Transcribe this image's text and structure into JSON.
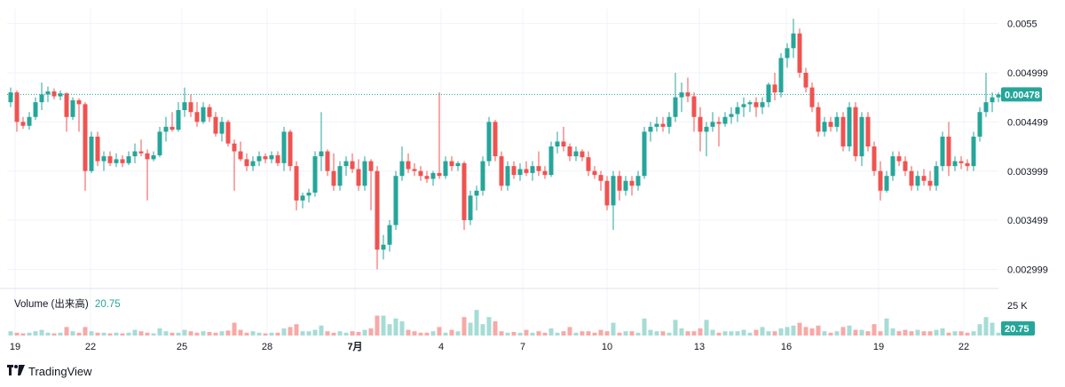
{
  "chart_data": {
    "type": "candlestick",
    "x_ticks": [
      "19",
      "22",
      "25",
      "28",
      "7月",
      "4",
      "7",
      "10",
      "13",
      "16",
      "19",
      "22"
    ],
    "y_ticks": [
      "0.0055",
      "0.004999",
      "0.004499",
      "0.003999",
      "0.003499",
      "0.002999"
    ],
    "ylim": [
      0.00285,
      0.00565
    ],
    "volume_ylim": [
      0,
      30000
    ],
    "current_price": "0.00478",
    "volume": {
      "label": "Volume (出来高)",
      "value": "20.75",
      "axis_tick": "25 K",
      "badge": "20.75"
    },
    "colors": {
      "up": "#26a69a",
      "down": "#ef5350",
      "up_vol": "#a6dcd6",
      "down_vol": "#f7a9a7",
      "grid": "#f0f3fa"
    },
    "candles": [
      [
        0.0047,
        0.00485,
        0.00465,
        0.0048
      ],
      [
        0.0048,
        0.00482,
        0.0044,
        0.0045
      ],
      [
        0.0045,
        0.00455,
        0.00443,
        0.00446
      ],
      [
        0.00446,
        0.0046,
        0.00442,
        0.00455
      ],
      [
        0.00455,
        0.00475,
        0.00452,
        0.0047
      ],
      [
        0.0047,
        0.0049,
        0.00462,
        0.00478
      ],
      [
        0.00478,
        0.00486,
        0.0047,
        0.00481
      ],
      [
        0.00481,
        0.00484,
        0.00473,
        0.00476
      ],
      [
        0.00476,
        0.00482,
        0.00472,
        0.00479
      ],
      [
        0.00479,
        0.0048,
        0.0044,
        0.00455
      ],
      [
        0.00455,
        0.00475,
        0.00452,
        0.00472
      ],
      [
        0.00472,
        0.00474,
        0.0044,
        0.00468
      ],
      [
        0.00468,
        0.0047,
        0.0038,
        0.004
      ],
      [
        0.004,
        0.0044,
        0.00398,
        0.00435
      ],
      [
        0.00435,
        0.0044,
        0.00405,
        0.0041
      ],
      [
        0.0041,
        0.0042,
        0.004,
        0.00415
      ],
      [
        0.00415,
        0.0042,
        0.00405,
        0.00408
      ],
      [
        0.00408,
        0.00418,
        0.00404,
        0.00412
      ],
      [
        0.00412,
        0.00416,
        0.00404,
        0.00408
      ],
      [
        0.00408,
        0.0042,
        0.00406,
        0.00415
      ],
      [
        0.00415,
        0.00428,
        0.00408,
        0.0042
      ],
      [
        0.0042,
        0.00432,
        0.00415,
        0.00418
      ],
      [
        0.00418,
        0.00422,
        0.0037,
        0.00412
      ],
      [
        0.00412,
        0.0042,
        0.0041,
        0.00416
      ],
      [
        0.00416,
        0.00445,
        0.00414,
        0.0044
      ],
      [
        0.0044,
        0.00455,
        0.0043,
        0.00445
      ],
      [
        0.00445,
        0.0046,
        0.0044,
        0.00442
      ],
      [
        0.00442,
        0.0047,
        0.0044,
        0.00462
      ],
      [
        0.00462,
        0.00485,
        0.00455,
        0.0047
      ],
      [
        0.0047,
        0.00478,
        0.00455,
        0.0046
      ],
      [
        0.0046,
        0.0047,
        0.00445,
        0.0045
      ],
      [
        0.0045,
        0.0047,
        0.00448,
        0.00465
      ],
      [
        0.00465,
        0.00468,
        0.0045,
        0.00455
      ],
      [
        0.00455,
        0.0046,
        0.00435,
        0.00438
      ],
      [
        0.00438,
        0.00455,
        0.0043,
        0.0045
      ],
      [
        0.0045,
        0.00452,
        0.00425,
        0.00428
      ],
      [
        0.00428,
        0.00432,
        0.0038,
        0.0042
      ],
      [
        0.0042,
        0.0043,
        0.0041,
        0.00412
      ],
      [
        0.00412,
        0.00418,
        0.004,
        0.00405
      ],
      [
        0.00405,
        0.00415,
        0.004,
        0.0041
      ],
      [
        0.0041,
        0.0042,
        0.00405,
        0.00415
      ],
      [
        0.00415,
        0.00418,
        0.00408,
        0.00412
      ],
      [
        0.00412,
        0.0042,
        0.00408,
        0.00416
      ],
      [
        0.00416,
        0.0042,
        0.00405,
        0.00408
      ],
      [
        0.00408,
        0.00445,
        0.004,
        0.0044
      ],
      [
        0.0044,
        0.00442,
        0.004,
        0.00405
      ],
      [
        0.00405,
        0.0041,
        0.0036,
        0.0037
      ],
      [
        0.0037,
        0.00378,
        0.00362,
        0.00375
      ],
      [
        0.00375,
        0.00382,
        0.00368,
        0.00378
      ],
      [
        0.00378,
        0.0042,
        0.00374,
        0.00415
      ],
      [
        0.00415,
        0.0046,
        0.004,
        0.0042
      ],
      [
        0.0042,
        0.00422,
        0.00395,
        0.004
      ],
      [
        0.004,
        0.00418,
        0.0038,
        0.00385
      ],
      [
        0.00385,
        0.0041,
        0.0038,
        0.00405
      ],
      [
        0.00405,
        0.00415,
        0.00395,
        0.0041
      ],
      [
        0.0041,
        0.00418,
        0.00398,
        0.00402
      ],
      [
        0.00402,
        0.00412,
        0.0038,
        0.00385
      ],
      [
        0.00385,
        0.00415,
        0.0038,
        0.0041
      ],
      [
        0.0041,
        0.00412,
        0.0036,
        0.004
      ],
      [
        0.004,
        0.00405,
        0.003,
        0.0032
      ],
      [
        0.0032,
        0.00335,
        0.0031,
        0.00325
      ],
      [
        0.00325,
        0.0035,
        0.00318,
        0.00345
      ],
      [
        0.00345,
        0.004,
        0.0034,
        0.00395
      ],
      [
        0.00395,
        0.00425,
        0.0039,
        0.0041
      ],
      [
        0.0041,
        0.00418,
        0.00398,
        0.00402
      ],
      [
        0.00402,
        0.00408,
        0.00395,
        0.004
      ],
      [
        0.004,
        0.00405,
        0.0039,
        0.00395
      ],
      [
        0.00395,
        0.004,
        0.00388,
        0.00392
      ],
      [
        0.00392,
        0.004,
        0.00385,
        0.00398
      ],
      [
        0.00398,
        0.0048,
        0.00392,
        0.00395
      ],
      [
        0.00395,
        0.00415,
        0.00392,
        0.0041
      ],
      [
        0.0041,
        0.00415,
        0.004,
        0.00405
      ],
      [
        0.00405,
        0.0041,
        0.004,
        0.00408
      ],
      [
        0.00408,
        0.0041,
        0.0034,
        0.0035
      ],
      [
        0.0035,
        0.0038,
        0.00345,
        0.00375
      ],
      [
        0.00375,
        0.00385,
        0.0036,
        0.0038
      ],
      [
        0.0038,
        0.00415,
        0.00375,
        0.0041
      ],
      [
        0.0041,
        0.00455,
        0.00405,
        0.0045
      ],
      [
        0.0045,
        0.00452,
        0.0041,
        0.00415
      ],
      [
        0.00415,
        0.0042,
        0.0038,
        0.00385
      ],
      [
        0.00385,
        0.0041,
        0.0038,
        0.00405
      ],
      [
        0.00405,
        0.0041,
        0.00392,
        0.00396
      ],
      [
        0.00396,
        0.00408,
        0.0039,
        0.00402
      ],
      [
        0.00402,
        0.0041,
        0.00395,
        0.00398
      ],
      [
        0.00398,
        0.0041,
        0.0039,
        0.00405
      ],
      [
        0.00405,
        0.0042,
        0.00395,
        0.004
      ],
      [
        0.004,
        0.00405,
        0.00392,
        0.00396
      ],
      [
        0.00396,
        0.0043,
        0.00394,
        0.00425
      ],
      [
        0.00425,
        0.0044,
        0.00418,
        0.0043
      ],
      [
        0.0043,
        0.00445,
        0.0042,
        0.00425
      ],
      [
        0.00425,
        0.00428,
        0.0041,
        0.00415
      ],
      [
        0.00415,
        0.00425,
        0.0041,
        0.0042
      ],
      [
        0.0042,
        0.00422,
        0.0041,
        0.00414
      ],
      [
        0.00414,
        0.0042,
        0.00395,
        0.004
      ],
      [
        0.004,
        0.00405,
        0.00392,
        0.00396
      ],
      [
        0.00396,
        0.004,
        0.0038,
        0.0039
      ],
      [
        0.0039,
        0.00395,
        0.0036,
        0.00365
      ],
      [
        0.00365,
        0.004,
        0.0034,
        0.00395
      ],
      [
        0.00395,
        0.004,
        0.0037,
        0.0038
      ],
      [
        0.0038,
        0.00395,
        0.00375,
        0.0039
      ],
      [
        0.0039,
        0.00395,
        0.00375,
        0.00385
      ],
      [
        0.00385,
        0.004,
        0.0038,
        0.00395
      ],
      [
        0.00395,
        0.00445,
        0.00392,
        0.0044
      ],
      [
        0.0044,
        0.0045,
        0.0043,
        0.00445
      ],
      [
        0.00445,
        0.00455,
        0.0044,
        0.00448
      ],
      [
        0.00448,
        0.00455,
        0.0044,
        0.00445
      ],
      [
        0.00445,
        0.0046,
        0.00438,
        0.00455
      ],
      [
        0.00455,
        0.005,
        0.0045,
        0.00475
      ],
      [
        0.00475,
        0.0049,
        0.0046,
        0.0048
      ],
      [
        0.0048,
        0.00495,
        0.0047,
        0.00476
      ],
      [
        0.00476,
        0.0048,
        0.0044,
        0.00455
      ],
      [
        0.00455,
        0.00465,
        0.0042,
        0.0044
      ],
      [
        0.0044,
        0.0045,
        0.00415,
        0.00445
      ],
      [
        0.00445,
        0.0046,
        0.0044,
        0.0045
      ],
      [
        0.0045,
        0.00455,
        0.00425,
        0.00448
      ],
      [
        0.00448,
        0.0046,
        0.00445,
        0.00455
      ],
      [
        0.00455,
        0.00465,
        0.00448,
        0.00458
      ],
      [
        0.00458,
        0.0047,
        0.0045,
        0.00465
      ],
      [
        0.00465,
        0.00475,
        0.00455,
        0.00468
      ],
      [
        0.00468,
        0.00472,
        0.0046,
        0.0047
      ],
      [
        0.0047,
        0.00475,
        0.00455,
        0.00465
      ],
      [
        0.00465,
        0.00475,
        0.00458,
        0.0047
      ],
      [
        0.0047,
        0.0049,
        0.00465,
        0.00488
      ],
      [
        0.00488,
        0.005,
        0.00472,
        0.0048
      ],
      [
        0.0048,
        0.0052,
        0.00475,
        0.00515
      ],
      [
        0.00515,
        0.0053,
        0.00505,
        0.00525
      ],
      [
        0.00525,
        0.00555,
        0.00515,
        0.0054
      ],
      [
        0.0054,
        0.00545,
        0.00495,
        0.005
      ],
      [
        0.005,
        0.00505,
        0.0048,
        0.00485
      ],
      [
        0.00485,
        0.0049,
        0.0046,
        0.00465
      ],
      [
        0.00465,
        0.0047,
        0.00435,
        0.0044
      ],
      [
        0.0044,
        0.00455,
        0.00435,
        0.0045
      ],
      [
        0.0045,
        0.00455,
        0.0044,
        0.00445
      ],
      [
        0.00445,
        0.0046,
        0.0044,
        0.00455
      ],
      [
        0.00455,
        0.0046,
        0.0042,
        0.00425
      ],
      [
        0.00425,
        0.0047,
        0.0042,
        0.00465
      ],
      [
        0.00465,
        0.0047,
        0.0041,
        0.00415
      ],
      [
        0.00415,
        0.0046,
        0.00405,
        0.00455
      ],
      [
        0.00455,
        0.0046,
        0.0042,
        0.00425
      ],
      [
        0.00425,
        0.0043,
        0.00395,
        0.004
      ],
      [
        0.004,
        0.0041,
        0.0037,
        0.0038
      ],
      [
        0.0038,
        0.004,
        0.00378,
        0.00395
      ],
      [
        0.00395,
        0.0042,
        0.0039,
        0.00415
      ],
      [
        0.00415,
        0.0042,
        0.00405,
        0.0041
      ],
      [
        0.0041,
        0.00415,
        0.00395,
        0.004
      ],
      [
        0.004,
        0.00405,
        0.0038,
        0.00385
      ],
      [
        0.00385,
        0.004,
        0.0038,
        0.00395
      ],
      [
        0.00395,
        0.00402,
        0.00385,
        0.0039
      ],
      [
        0.0039,
        0.004,
        0.0038,
        0.00385
      ],
      [
        0.00385,
        0.0041,
        0.0038,
        0.00405
      ],
      [
        0.00405,
        0.0044,
        0.004,
        0.00435
      ],
      [
        0.00435,
        0.0045,
        0.00395,
        0.00405
      ],
      [
        0.00405,
        0.00415,
        0.004,
        0.0041
      ],
      [
        0.0041,
        0.00415,
        0.00402,
        0.00408
      ],
      [
        0.00408,
        0.00412,
        0.004,
        0.00405
      ],
      [
        0.00405,
        0.0044,
        0.004,
        0.00435
      ],
      [
        0.00435,
        0.00465,
        0.0043,
        0.0046
      ],
      [
        0.0046,
        0.005,
        0.00455,
        0.0047
      ],
      [
        0.0047,
        0.0048,
        0.0046,
        0.00475
      ],
      [
        0.00475,
        0.0048,
        0.0047,
        0.00478
      ]
    ],
    "volumes": [
      3000,
      2000,
      1500,
      2000,
      3000,
      4000,
      2000,
      1500,
      2000,
      6000,
      3000,
      2000,
      6000,
      3000,
      2000,
      2000,
      1500,
      2000,
      1500,
      2000,
      4000,
      3000,
      2000,
      1500,
      5000,
      3000,
      2000,
      2000,
      4000,
      3000,
      2000,
      3000,
      2500,
      2000,
      3000,
      3500,
      9000,
      4000,
      2000,
      3000,
      2000,
      1500,
      2000,
      2000,
      5000,
      6000,
      8000,
      3000,
      3000,
      4000,
      7000,
      3000,
      2000,
      3000,
      2000,
      3000,
      2500,
      4000,
      5000,
      14000,
      14000,
      8000,
      12000,
      10000,
      4000,
      3000,
      2000,
      2000,
      3000,
      6000,
      2000,
      4000,
      3000,
      13000,
      9000,
      18000,
      8000,
      13000,
      10000,
      3000,
      2000,
      2500,
      2000,
      4000,
      2000,
      3000,
      2000,
      5000,
      2000,
      3000,
      6000,
      2000,
      3000,
      3000,
      2000,
      4000,
      3000,
      9000,
      2000,
      3000,
      3000,
      2000,
      12000,
      4000,
      3000,
      3000,
      2000,
      11000,
      5000,
      3000,
      3000,
      5000,
      11000,
      4000,
      2000,
      3000,
      3000,
      3000,
      4000,
      2000,
      4000,
      6000,
      3000,
      3000,
      5000,
      6000,
      7000,
      9000,
      6000,
      5000,
      7000,
      3000,
      2000,
      3000,
      6000,
      7000,
      4000,
      4000,
      3000,
      8000,
      3000,
      12000,
      5000,
      3000,
      4000,
      3000,
      4000,
      3000,
      3000,
      4000,
      5000,
      2000,
      3000,
      3000,
      2000,
      3000,
      8000,
      13000,
      9000,
      2000
    ]
  }
}
